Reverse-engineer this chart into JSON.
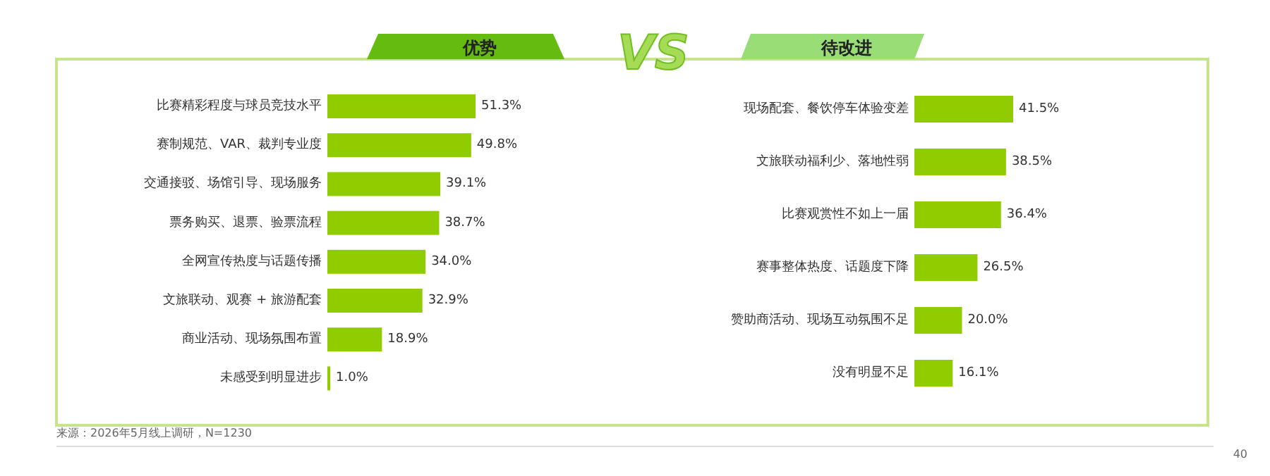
{
  "chart_data": [
    {
      "type": "bar",
      "orientation": "horizontal",
      "title": "优势",
      "categories": [
        "比赛精彩程度与球员竞技水平",
        "赛制规范、VAR、裁判专业度",
        "交通接驳、场馆引导、现场服务",
        "票务购买、退票、验票流程",
        "全网宣传热度与话题传播",
        "文旅联动、观赛 + 旅游配套",
        "商业活动、现场氛围布置",
        "未感受到明显进步"
      ],
      "values": [
        51.3,
        49.8,
        39.1,
        38.7,
        34.0,
        32.9,
        18.9,
        1.0
      ],
      "value_labels": [
        "51.3%",
        "49.8%",
        "39.1%",
        "38.7%",
        "34.0%",
        "32.9%",
        "18.9%",
        "1.0%"
      ],
      "color": "#8fcc00",
      "annotations": [
        "VS",
        "来源：2026年5月线上调研，N=1230"
      ]
    },
    {
      "type": "bar",
      "orientation": "horizontal",
      "title": "待改进",
      "categories": [
        "现场配套、餐饮停车体验变差",
        "文旅联动福利少、落地性弱",
        "比赛观赏性不如上一届",
        "赛事整体热度、话题度下降",
        "赞助商活动、现场互动氛围不足",
        "没有明显不足"
      ],
      "values": [
        41.5,
        38.5,
        36.4,
        26.5,
        20.0,
        16.1
      ],
      "value_labels": [
        "41.5%",
        "38.5%",
        "36.4%",
        "26.5%",
        "20.0%",
        "16.1%"
      ],
      "color": "#8fcc00",
      "annotations": [
        "40"
      ]
    }
  ]
}
